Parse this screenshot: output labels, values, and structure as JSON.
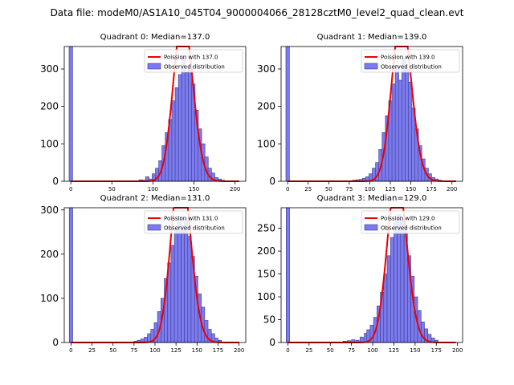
{
  "suptitle": "Data file: modeM0/AS1A10_045T04_9000004066_28128cztM0_level2_quad_clean.evt",
  "legend": {
    "observed_label": "Observed distribution",
    "poisson_prefix": "Poission with "
  },
  "colors": {
    "bar_fill": "#7b7bef",
    "bar_edge": "#3a3a8c",
    "curve": "#ee0000"
  },
  "chart_data": [
    {
      "type": "bar",
      "title": "Quadrant 0: Median=137.0",
      "median": 137.0,
      "poisson_label": "Poission with 137.0",
      "observed_label": "Observed distribution",
      "xlim": [
        -8,
        213
      ],
      "ylim": [
        0,
        360
      ],
      "xticks": [
        0,
        50,
        100,
        150,
        200
      ],
      "yticks": [
        0,
        100,
        200,
        300
      ],
      "bin_width": 4.3,
      "zero_bin_value": 360,
      "bins": [
        [
          83,
          4
        ],
        [
          87,
          3
        ],
        [
          91,
          12
        ],
        [
          95,
          6
        ],
        [
          99,
          20
        ],
        [
          103,
          35
        ],
        [
          107,
          55
        ],
        [
          111,
          95
        ],
        [
          115,
          130
        ],
        [
          119,
          165
        ],
        [
          123,
          215
        ],
        [
          127,
          250
        ],
        [
          131,
          285
        ],
        [
          135,
          330
        ],
        [
          139,
          290
        ],
        [
          143,
          300
        ],
        [
          147,
          260
        ],
        [
          151,
          190
        ],
        [
          155,
          140
        ],
        [
          159,
          100
        ],
        [
          163,
          65
        ],
        [
          167,
          35
        ],
        [
          171,
          22
        ],
        [
          175,
          10
        ],
        [
          179,
          6
        ],
        [
          183,
          3
        ]
      ]
    },
    {
      "type": "bar",
      "title": "Quadrant 1: Median=139.0",
      "median": 139.0,
      "poisson_label": "Poission with 139.0",
      "observed_label": "Observed distribution",
      "xlim": [
        -8,
        213
      ],
      "ylim": [
        0,
        360
      ],
      "xticks": [
        0,
        25,
        50,
        75,
        100,
        125,
        150,
        175,
        200
      ],
      "yticks": [
        0,
        100,
        200,
        300
      ],
      "bin_width": 4.3,
      "zero_bin_value": 360,
      "bins": [
        [
          79,
          3
        ],
        [
          83,
          4
        ],
        [
          87,
          5
        ],
        [
          91,
          8
        ],
        [
          95,
          12
        ],
        [
          99,
          20
        ],
        [
          103,
          35
        ],
        [
          107,
          50
        ],
        [
          111,
          85
        ],
        [
          115,
          130
        ],
        [
          119,
          175
        ],
        [
          123,
          215
        ],
        [
          127,
          260
        ],
        [
          131,
          310
        ],
        [
          135,
          270
        ],
        [
          139,
          330
        ],
        [
          143,
          300
        ],
        [
          147,
          265
        ],
        [
          151,
          195
        ],
        [
          155,
          140
        ],
        [
          159,
          95
        ],
        [
          163,
          60
        ],
        [
          167,
          35
        ],
        [
          171,
          20
        ],
        [
          175,
          10
        ],
        [
          179,
          6
        ],
        [
          183,
          3
        ]
      ]
    },
    {
      "type": "bar",
      "title": "Quadrant 2: Median=131.0",
      "median": 131.0,
      "poisson_label": "Poission with 131.0",
      "observed_label": "Observed distribution",
      "xlim": [
        -8,
        208
      ],
      "ylim": [
        0,
        305
      ],
      "xticks": [
        0,
        25,
        50,
        75,
        100,
        125,
        150,
        175,
        200
      ],
      "yticks": [
        0,
        100,
        200,
        300
      ],
      "bin_width": 4.1,
      "zero_bin_value": 305,
      "bins": [
        [
          75,
          3
        ],
        [
          79,
          5
        ],
        [
          83,
          8
        ],
        [
          87,
          12
        ],
        [
          91,
          20
        ],
        [
          95,
          30
        ],
        [
          99,
          45
        ],
        [
          103,
          70
        ],
        [
          107,
          100
        ],
        [
          111,
          145
        ],
        [
          115,
          180
        ],
        [
          119,
          220
        ],
        [
          123,
          255
        ],
        [
          127,
          285
        ],
        [
          131,
          265
        ],
        [
          135,
          280
        ],
        [
          139,
          240
        ],
        [
          143,
          195
        ],
        [
          147,
          150
        ],
        [
          151,
          110
        ],
        [
          155,
          80
        ],
        [
          159,
          50
        ],
        [
          163,
          30
        ],
        [
          167,
          20
        ],
        [
          171,
          10
        ],
        [
          175,
          5
        ]
      ]
    },
    {
      "type": "bar",
      "title": "Quadrant 3: Median=129.0",
      "median": 129.0,
      "poisson_label": "Poission with 129.0",
      "observed_label": "Observed distribution",
      "xlim": [
        -8,
        206
      ],
      "ylim": [
        0,
        295
      ],
      "xticks": [
        0,
        25,
        50,
        75,
        100,
        125,
        150,
        175,
        200
      ],
      "yticks": [
        0,
        50,
        100,
        150,
        200,
        250
      ],
      "bin_width": 4.0,
      "zero_bin_value": 295,
      "bins": [
        [
          65,
          3
        ],
        [
          70,
          4
        ],
        [
          75,
          6
        ],
        [
          80,
          5
        ],
        [
          85,
          12
        ],
        [
          90,
          20
        ],
        [
          93,
          28
        ],
        [
          97,
          38
        ],
        [
          101,
          55
        ],
        [
          105,
          80
        ],
        [
          109,
          110
        ],
        [
          113,
          150
        ],
        [
          117,
          190
        ],
        [
          121,
          230
        ],
        [
          125,
          265
        ],
        [
          129,
          280
        ],
        [
          133,
          270
        ],
        [
          137,
          240
        ],
        [
          141,
          190
        ],
        [
          145,
          145
        ],
        [
          149,
          100
        ],
        [
          153,
          70
        ],
        [
          157,
          45
        ],
        [
          161,
          30
        ],
        [
          165,
          18
        ],
        [
          169,
          10
        ],
        [
          173,
          5
        ]
      ]
    }
  ]
}
